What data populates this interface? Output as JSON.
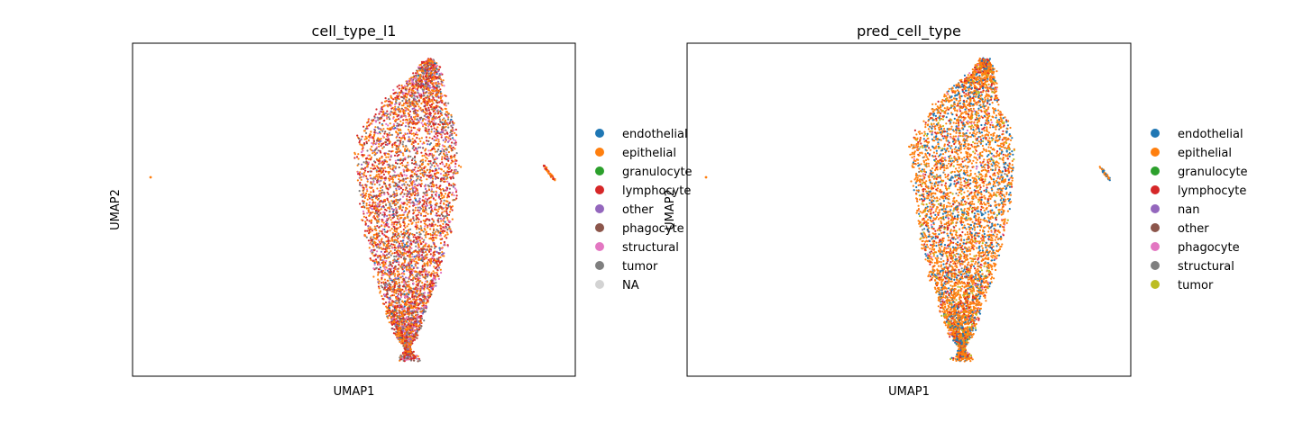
{
  "chart_data": [
    {
      "type": "scatter",
      "title": "cell_type_l1",
      "xlabel": "UMAP1",
      "ylabel": "UMAP2",
      "grid": false,
      "legend": "right, outside",
      "ticks": "none",
      "legend_entries": [
        {
          "label": "endothelial",
          "color": "#1f77b4"
        },
        {
          "label": "epithelial",
          "color": "#ff7f0e"
        },
        {
          "label": "granulocyte",
          "color": "#2ca02c"
        },
        {
          "label": "lymphocyte",
          "color": "#d62728"
        },
        {
          "label": "other",
          "color": "#9467bd"
        },
        {
          "label": "phagocyte",
          "color": "#8c564b"
        },
        {
          "label": "structural",
          "color": "#e377c2"
        },
        {
          "label": "tumor",
          "color": "#7f7f7f"
        },
        {
          "label": "NA",
          "color": "#d3d3d3"
        }
      ],
      "dominant_categories": [
        "epithelial",
        "lymphocyte",
        "structural",
        "tumor"
      ]
    },
    {
      "type": "scatter",
      "title": "pred_cell_type",
      "xlabel": "UMAP1",
      "ylabel": "UMAP2",
      "grid": false,
      "legend": "right, outside",
      "ticks": "none",
      "legend_entries": [
        {
          "label": "endothelial",
          "color": "#1f77b4"
        },
        {
          "label": "epithelial",
          "color": "#ff7f0e"
        },
        {
          "label": "granulocyte",
          "color": "#2ca02c"
        },
        {
          "label": "lymphocyte",
          "color": "#d62728"
        },
        {
          "label": "nan",
          "color": "#9467bd"
        },
        {
          "label": "other",
          "color": "#8c564b"
        },
        {
          "label": "phagocyte",
          "color": "#e377c2"
        },
        {
          "label": "structural",
          "color": "#7f7f7f"
        },
        {
          "label": "tumor",
          "color": "#bcbd22"
        }
      ],
      "dominant_categories": [
        "epithelial",
        "endothelial",
        "lymphocyte",
        "tumor"
      ]
    }
  ]
}
